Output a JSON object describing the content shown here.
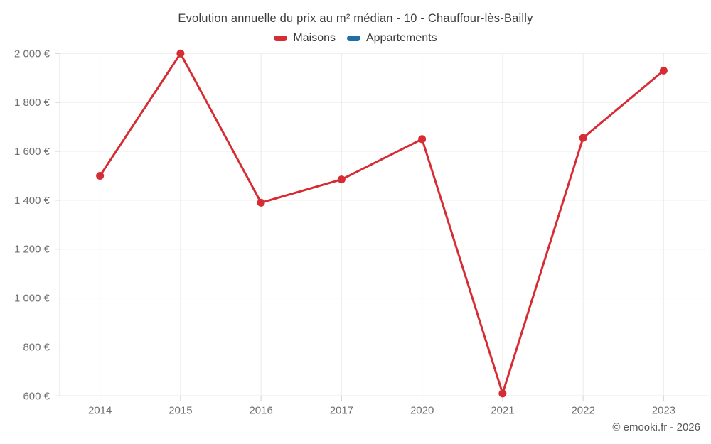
{
  "footer": {
    "credit": "© emooki.fr - 2026"
  },
  "legend": {
    "items": [
      "Maisons",
      "Appartements"
    ]
  },
  "chart_data": {
    "type": "line",
    "title": "Evolution annuelle du prix au m² médian - 10 - Chauffour-lès-Bailly",
    "categories": [
      "2014",
      "2015",
      "2016",
      "2017",
      "2020",
      "2021",
      "2022",
      "2023"
    ],
    "series": [
      {
        "name": "Maisons",
        "color": "#d62c33",
        "values": [
          1500,
          2000,
          1390,
          1485,
          1650,
          610,
          1655,
          1930
        ]
      },
      {
        "name": "Appartements",
        "color": "#1d6fa5",
        "values": []
      }
    ],
    "ylabel": "",
    "xlabel": "",
    "ylim": [
      600,
      2000
    ],
    "ytick_step": 200,
    "ytick_labels": [
      "600 €",
      "800 €",
      "1 000 €",
      "1 200 €",
      "1 400 €",
      "1 600 €",
      "1 800 €",
      "2 000 €"
    ],
    "grid": true,
    "legend_position": "top",
    "colors": {
      "grid_line": "#ebebeb",
      "axis_line": "#d2d2d2",
      "tick_text": "#6f6f6f",
      "title_text": "#3d3d3d"
    }
  }
}
